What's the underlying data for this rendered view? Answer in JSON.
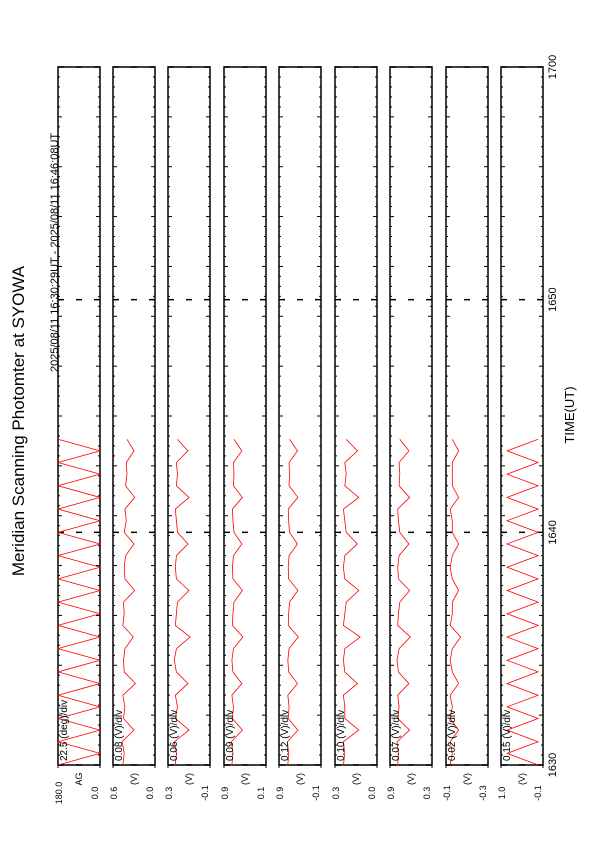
{
  "chart_data": {
    "type": "line",
    "title": "Meridian Scanning Photomter at SYOWA",
    "subtitle": "2025/08/11 16:30:29UT - 2025/08/11 16:46:08UT",
    "xlabel": "TIME(UT)",
    "color": "#ff0000",
    "xlim": [
      0,
      30
    ],
    "xticks": [
      {
        "value": 0,
        "label": "1630"
      },
      {
        "value": 10,
        "label": "1640"
      },
      {
        "value": 20,
        "label": "1650"
      },
      {
        "value": 30,
        "label": "1700"
      }
    ],
    "x": [
      0,
      0.5,
      1,
      1.5,
      2,
      2.5,
      3,
      3.5,
      4,
      4.5,
      5,
      5.5,
      6,
      6.5,
      7,
      7.5,
      8,
      8.5,
      9,
      9.5,
      10,
      10.5,
      11,
      11.5,
      12,
      12.5,
      13,
      13.5,
      14
    ],
    "panels": [
      {
        "label": "22.5 (deg)/div",
        "ylabel": "AG",
        "ylim": [
          0,
          180
        ],
        "yticks": [
          {
            "value": 180,
            "label": "180.0"
          },
          {
            "value": 0,
            "label": "0.0"
          }
        ],
        "values": [
          180,
          0,
          180,
          0,
          180,
          0,
          180,
          0,
          180,
          0,
          180,
          0,
          180,
          0,
          180,
          0,
          180,
          0,
          180,
          0,
          180,
          0,
          180,
          0,
          180,
          0,
          180,
          0,
          180
        ]
      },
      {
        "label": "0.08 (V)/div",
        "ylabel": "(V)",
        "ylim": [
          0,
          0.6
        ],
        "yticks": [
          {
            "value": 0.6,
            "label": "0.6"
          },
          {
            "value": 0,
            "label": "0.0"
          }
        ],
        "values": [
          0.46,
          0.44,
          0.47,
          0.3,
          0.45,
          0.43,
          0.46,
          0.28,
          0.44,
          0.45,
          0.43,
          0.31,
          0.46,
          0.44,
          0.45,
          0.29,
          0.43,
          0.44,
          0.42,
          0.3,
          0.44,
          0.41,
          0.43,
          0.29,
          0.42,
          0.4,
          0.41,
          0.3,
          0.4
        ]
      },
      {
        "label": "0.06 (V)/div",
        "ylabel": "(V)",
        "ylim": [
          -0.1,
          0.3
        ],
        "yticks": [
          0.3,
          -0.1
        ],
        "values": [
          0.23,
          0.22,
          0.24,
          0.1,
          0.23,
          0.21,
          0.23,
          0.11,
          0.22,
          0.24,
          0.22,
          0.09,
          0.23,
          0.22,
          0.21,
          0.1,
          0.22,
          0.23,
          0.22,
          0.11,
          0.21,
          0.22,
          0.23,
          0.1,
          0.22,
          0.21,
          0.22,
          0.11,
          0.21
        ]
      },
      {
        "label": "0.09 (V)/div",
        "ylabel": "(V)",
        "ylim": [
          0.1,
          0.9
        ],
        "yticks": [
          0.9,
          0.1
        ],
        "values": [
          0.75,
          0.73,
          0.76,
          0.55,
          0.74,
          0.72,
          0.75,
          0.56,
          0.73,
          0.75,
          0.72,
          0.54,
          0.74,
          0.73,
          0.71,
          0.55,
          0.73,
          0.74,
          0.72,
          0.56,
          0.71,
          0.73,
          0.74,
          0.55,
          0.72,
          0.71,
          0.72,
          0.56,
          0.71
        ]
      },
      {
        "label": "0.12 (V)/div",
        "ylabel": "(V)",
        "ylim": [
          -0.1,
          0.9
        ],
        "yticks": [
          0.9,
          -0.1
        ],
        "values": [
          0.69,
          0.67,
          0.7,
          0.45,
          0.68,
          0.66,
          0.69,
          0.46,
          0.67,
          0.69,
          0.66,
          0.44,
          0.68,
          0.67,
          0.65,
          0.45,
          0.67,
          0.68,
          0.66,
          0.46,
          0.65,
          0.67,
          0.68,
          0.45,
          0.66,
          0.65,
          0.66,
          0.46,
          0.65
        ]
      },
      {
        "label": "0.10 (V)/div",
        "ylabel": "(V)",
        "ylim": [
          0,
          0.3
        ],
        "yticks": [
          0.3,
          {
            "value": 0,
            "label": "0.0"
          }
        ],
        "values": [
          0.24,
          0.23,
          0.24,
          0.13,
          0.23,
          0.23,
          0.24,
          0.14,
          0.23,
          0.24,
          0.23,
          0.12,
          0.24,
          0.23,
          0.22,
          0.13,
          0.23,
          0.24,
          0.23,
          0.14,
          0.22,
          0.23,
          0.24,
          0.13,
          0.23,
          0.22,
          0.23,
          0.14,
          0.22
        ]
      },
      {
        "label": "0.07 (V)/div",
        "ylabel": "(V)",
        "ylim": [
          0.3,
          0.9
        ],
        "yticks": [
          0.9,
          0.3
        ],
        "values": [
          0.79,
          0.78,
          0.8,
          0.62,
          0.79,
          0.77,
          0.79,
          0.63,
          0.78,
          0.8,
          0.77,
          0.61,
          0.79,
          0.78,
          0.76,
          0.62,
          0.78,
          0.79,
          0.77,
          0.63,
          0.76,
          0.78,
          0.79,
          0.62,
          0.77,
          0.76,
          0.77,
          0.63,
          0.76
        ]
      },
      {
        "label": "0.02 (V)/div",
        "ylabel": "(V)",
        "ylim": [
          -0.3,
          -0.1
        ],
        "yticks": [
          -0.1,
          -0.3
        ],
        "values": [
          -0.12,
          -0.13,
          -0.12,
          -0.16,
          -0.12,
          -0.13,
          -0.12,
          -0.16,
          -0.13,
          -0.12,
          -0.13,
          -0.17,
          -0.12,
          -0.13,
          -0.13,
          -0.16,
          -0.13,
          -0.12,
          -0.13,
          -0.16,
          -0.13,
          -0.13,
          -0.12,
          -0.16,
          -0.13,
          -0.13,
          -0.13,
          -0.16,
          -0.13
        ]
      },
      {
        "label": "0.15 (V)/div",
        "ylabel": "(V)",
        "ylim": [
          -0.1,
          1.0
        ],
        "yticks": [
          {
            "value": 1.0,
            "label": "1.0"
          },
          -0.1
        ],
        "values": [
          0.03,
          0.84,
          0.03,
          0.84,
          0.03,
          0.84,
          0.03,
          0.84,
          0.03,
          0.84,
          0.03,
          0.84,
          0.03,
          0.84,
          0.03,
          0.84,
          0.03,
          0.84,
          0.03,
          0.84,
          0.03,
          0.84,
          0.03,
          0.84,
          0.03,
          0.84,
          0.03,
          0.84,
          0.03
        ]
      }
    ]
  }
}
